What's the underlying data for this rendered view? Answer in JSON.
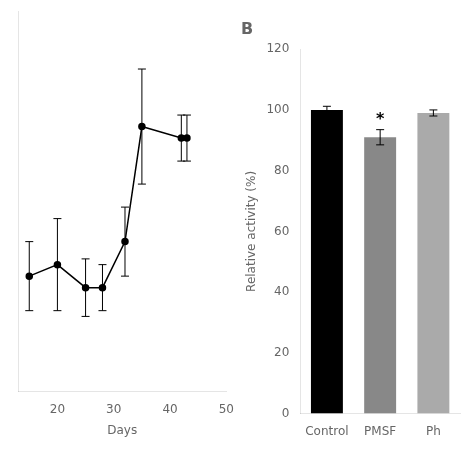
{
  "chart_data": [
    {
      "type": "line",
      "x": [
        15,
        20,
        25,
        28,
        32,
        35,
        42,
        43
      ],
      "values": [
        92,
        93,
        91,
        91,
        95,
        105,
        104,
        104
      ],
      "errors": [
        3,
        4,
        2.5,
        2,
        3,
        5,
        2,
        2
      ],
      "color": "#000000",
      "marker": "circle",
      "line_style": "solid",
      "xlabel": "Days",
      "xlim": [
        13,
        50
      ],
      "xticks": [
        20,
        30,
        40,
        50
      ],
      "ylim": [
        82,
        115
      ],
      "yticks": [],
      "tick_labels": "x",
      "grid": false
    },
    {
      "type": "bar",
      "title": "B",
      "ylabel": "Relative activity (%)",
      "categories": [
        "Control",
        "PMSF",
        "Ph"
      ],
      "values": [
        100,
        91,
        99
      ],
      "errors": [
        1.2,
        2.5,
        1.0
      ],
      "colors": [
        "#000000",
        "#888888",
        "#aaaaaa"
      ],
      "ylim": [
        0,
        120
      ],
      "yticks": [
        0,
        20,
        40,
        60,
        80,
        100,
        120
      ],
      "grid": false,
      "annotations": [
        {
          "category": "PMSF",
          "text": "*"
        }
      ]
    }
  ]
}
